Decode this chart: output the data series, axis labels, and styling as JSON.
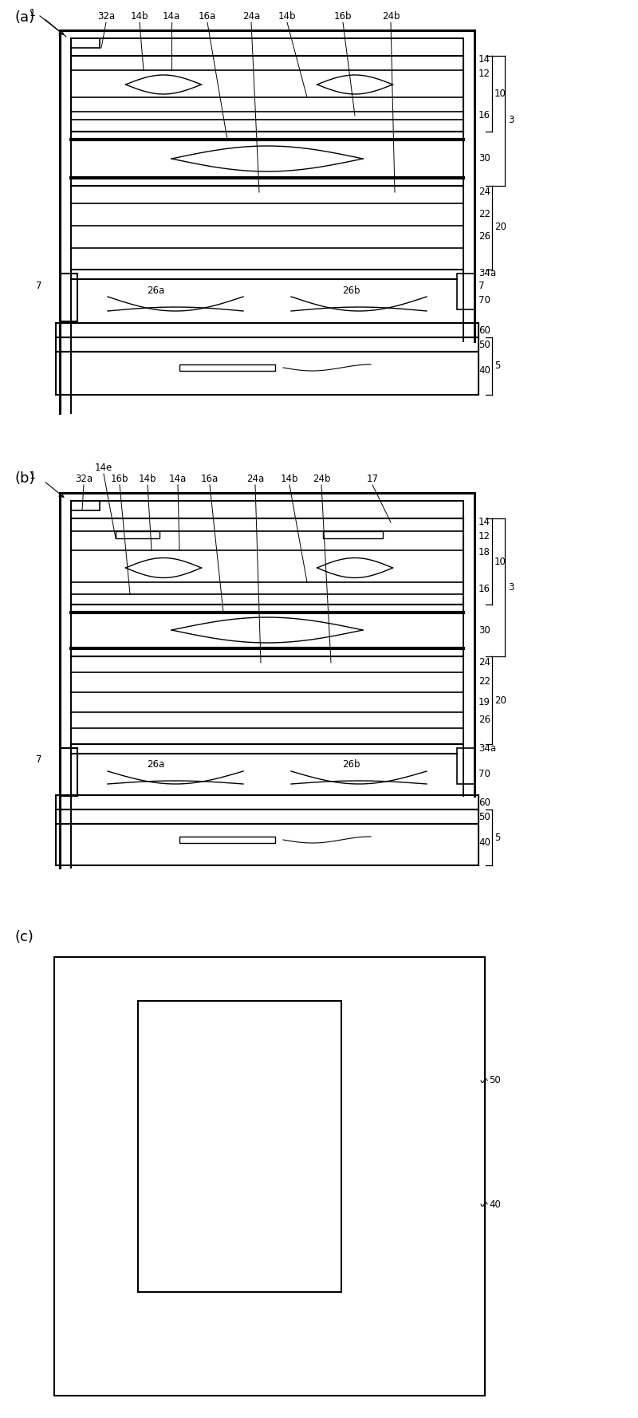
{
  "bg_color": "#ffffff",
  "line_color": "#000000",
  "fig_width": 8.0,
  "fig_height": 17.78,
  "panels": [
    "(a)",
    "(b)",
    "(c)"
  ]
}
